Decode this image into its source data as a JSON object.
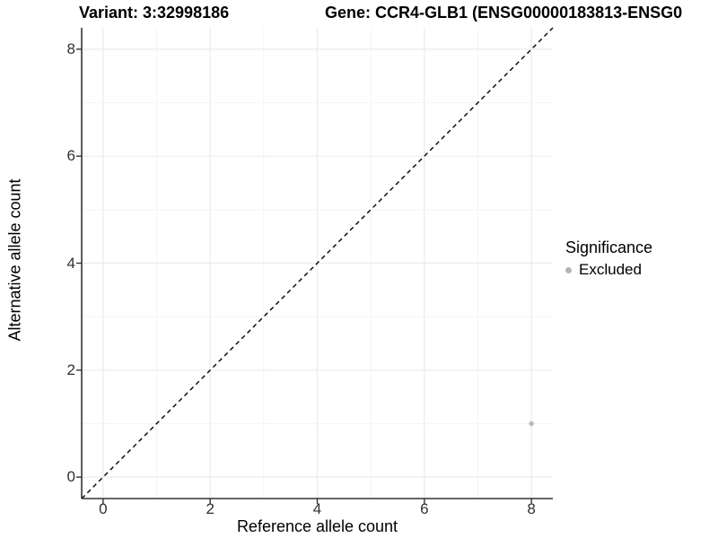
{
  "titles": {
    "variant": "Variant: 3:32998186",
    "gene": "Gene: CCR4-GLB1 (ENSG00000183813-ENSG0"
  },
  "chart_data": {
    "type": "scatter",
    "title": "Variant: 3:32998186",
    "xlabel": "Reference allele count",
    "ylabel": "Alternative allele count",
    "xlim": [
      -0.4,
      8.4
    ],
    "ylim": [
      -0.4,
      8.4
    ],
    "ticks": [
      0,
      2,
      4,
      6,
      8
    ],
    "minor_ticks": [
      1,
      3,
      5,
      7
    ],
    "grid": true,
    "identity_line": {
      "style": "dashed",
      "slope": 1,
      "intercept": 0
    },
    "series": [
      {
        "name": "Excluded",
        "color": "#bdbdbd",
        "points": [
          [
            8,
            1
          ]
        ]
      }
    ],
    "legend": {
      "title": "Significance",
      "position": "right",
      "items": [
        {
          "label": "Excluded",
          "color": "#b5b5b5"
        }
      ]
    }
  },
  "colors": {
    "background": "#ffffff",
    "grid_major": "#ebebeb",
    "grid_minor": "#f5f5f5",
    "axis": "#333333",
    "identity_line": "#000000",
    "tick_label": "#303030",
    "point": "#bdbdbd"
  }
}
